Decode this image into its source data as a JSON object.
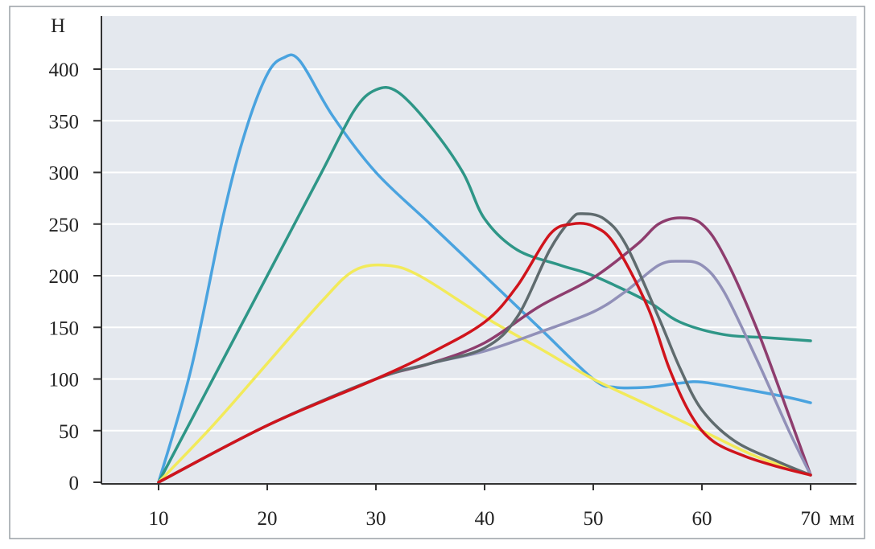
{
  "chart_data": {
    "type": "line",
    "ylabel": "Н",
    "xlabel": "мм",
    "xlim": [
      10,
      70
    ],
    "ylim": [
      0,
      400
    ],
    "x_ticks": [
      10,
      20,
      30,
      40,
      50,
      60,
      70
    ],
    "x_tick_labels": [
      "10",
      "20",
      "30",
      "40",
      "50",
      "60",
      "70"
    ],
    "y_ticks": [
      0,
      50,
      100,
      150,
      200,
      250,
      300,
      350,
      400
    ],
    "y_tick_labels": [
      "0",
      "50",
      "100",
      "150",
      "200",
      "250",
      "300",
      "350",
      "400"
    ],
    "grid": true,
    "colors": {
      "plot_background": "#e4e8ee",
      "grid": "#ffffff",
      "axis": "#333333"
    },
    "series": [
      {
        "color": "#4aa3df",
        "points": [
          [
            10,
            0
          ],
          [
            13,
            110
          ],
          [
            16,
            260
          ],
          [
            18,
            340
          ],
          [
            20,
            395
          ],
          [
            21.5,
            411
          ],
          [
            23,
            408
          ],
          [
            26,
            355
          ],
          [
            30,
            300
          ],
          [
            35,
            250
          ],
          [
            40,
            200
          ],
          [
            45,
            150
          ],
          [
            50,
            100
          ],
          [
            52,
            92
          ],
          [
            55,
            92
          ],
          [
            58,
            96
          ],
          [
            60,
            97
          ],
          [
            64,
            90
          ],
          [
            68,
            82
          ],
          [
            70,
            77
          ]
        ]
      },
      {
        "color": "#2e9687",
        "points": [
          [
            10,
            0
          ],
          [
            15,
            100
          ],
          [
            20,
            200
          ],
          [
            25,
            300
          ],
          [
            28,
            360
          ],
          [
            30,
            380
          ],
          [
            32,
            378
          ],
          [
            35,
            345
          ],
          [
            38,
            300
          ],
          [
            40,
            255
          ],
          [
            43,
            225
          ],
          [
            47,
            210
          ],
          [
            50,
            200
          ],
          [
            55,
            175
          ],
          [
            58,
            155
          ],
          [
            62,
            143
          ],
          [
            66,
            140
          ],
          [
            70,
            137
          ]
        ]
      },
      {
        "color": "#f2ea5a",
        "points": [
          [
            10,
            0
          ],
          [
            15,
            55
          ],
          [
            20,
            115
          ],
          [
            25,
            175
          ],
          [
            28,
            205
          ],
          [
            31,
            210
          ],
          [
            34,
            200
          ],
          [
            40,
            160
          ],
          [
            45,
            130
          ],
          [
            50,
            100
          ],
          [
            55,
            75
          ],
          [
            60,
            50
          ],
          [
            65,
            25
          ],
          [
            70,
            7
          ]
        ]
      },
      {
        "color": "#8e3d6e",
        "points": [
          [
            10,
            0
          ],
          [
            20,
            55
          ],
          [
            30,
            100
          ],
          [
            35,
            115
          ],
          [
            40,
            135
          ],
          [
            45,
            170
          ],
          [
            50,
            198
          ],
          [
            54,
            230
          ],
          [
            56,
            250
          ],
          [
            58,
            256
          ],
          [
            60,
            250
          ],
          [
            62,
            220
          ],
          [
            65,
            150
          ],
          [
            68,
            65
          ],
          [
            70,
            7
          ]
        ]
      },
      {
        "color": "#9190b8",
        "points": [
          [
            10,
            0
          ],
          [
            20,
            55
          ],
          [
            30,
            100
          ],
          [
            35,
            115
          ],
          [
            40,
            127
          ],
          [
            45,
            145
          ],
          [
            50,
            165
          ],
          [
            53,
            185
          ],
          [
            56,
            210
          ],
          [
            58,
            214
          ],
          [
            60,
            210
          ],
          [
            62,
            185
          ],
          [
            65,
            120
          ],
          [
            68,
            50
          ],
          [
            70,
            7
          ]
        ]
      },
      {
        "color": "#5f6b6e",
        "points": [
          [
            10,
            0
          ],
          [
            20,
            55
          ],
          [
            30,
            100
          ],
          [
            35,
            115
          ],
          [
            40,
            130
          ],
          [
            43,
            160
          ],
          [
            46,
            225
          ],
          [
            48,
            255
          ],
          [
            49,
            260
          ],
          [
            51,
            255
          ],
          [
            53,
            230
          ],
          [
            56,
            160
          ],
          [
            58,
            110
          ],
          [
            60,
            70
          ],
          [
            63,
            40
          ],
          [
            67,
            20
          ],
          [
            70,
            7
          ]
        ]
      },
      {
        "color": "#d0141c",
        "points": [
          [
            10,
            0
          ],
          [
            20,
            55
          ],
          [
            30,
            100
          ],
          [
            35,
            125
          ],
          [
            40,
            155
          ],
          [
            43,
            190
          ],
          [
            46,
            240
          ],
          [
            48,
            250
          ],
          [
            50,
            248
          ],
          [
            52,
            230
          ],
          [
            55,
            170
          ],
          [
            57,
            110
          ],
          [
            59,
            65
          ],
          [
            61,
            40
          ],
          [
            64,
            25
          ],
          [
            67,
            15
          ],
          [
            70,
            7
          ]
        ]
      }
    ]
  }
}
